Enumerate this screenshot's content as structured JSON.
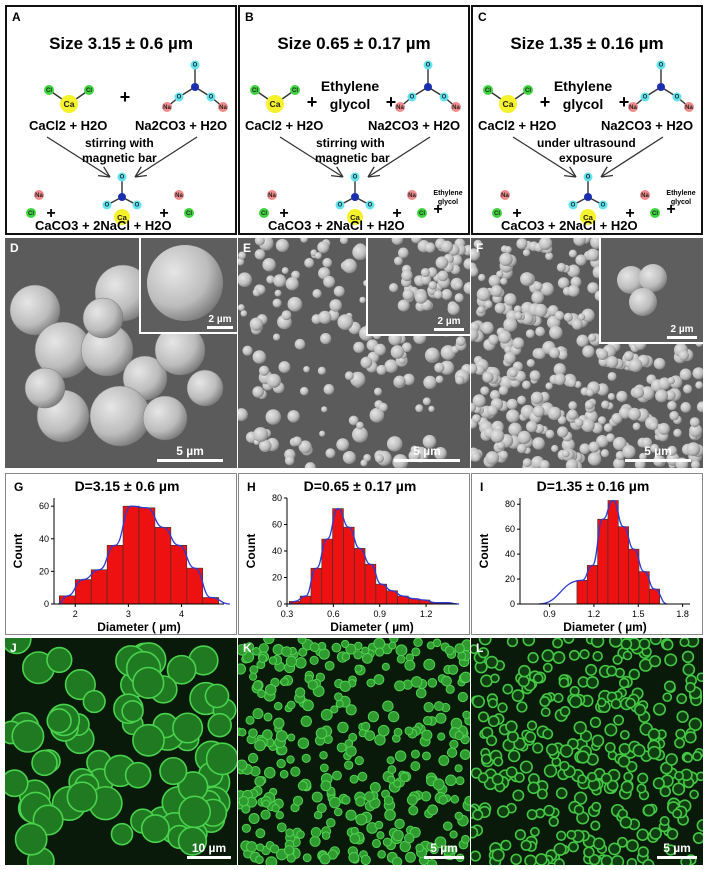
{
  "schemes": [
    {
      "label": "A",
      "title": "Size 3.15 ± 0.6 µm",
      "reactant1": "CaCl2 + H2O",
      "reactant2": "Na2CO3 + H2O",
      "condition1": "stirring with",
      "condition2": "magnetic bar",
      "product": "CaCO3 + 2NaCl + H2O",
      "extra": "",
      "extra_product": ""
    },
    {
      "label": "B",
      "title": "Size 0.65 ± 0.17 µm",
      "reactant1": "CaCl2 + H2O",
      "reactant2": "Na2CO3 + H2O",
      "condition1": "stirring with",
      "condition2": "magnetic bar",
      "product": "CaCO3 + 2NaCl + H2O",
      "extra": "Ethylene glycol",
      "extra_product": "Ethylene glycol"
    },
    {
      "label": "C",
      "title": "Size 1.35 ± 0.16 µm",
      "reactant1": "CaCl2 + H2O",
      "reactant2": "Na2CO3 + H2O",
      "condition1": "under ultrasound",
      "condition2": "exposure",
      "product": "CaCO3 + 2NaCl + H2O",
      "extra": "Ethylene glycol",
      "extra_product": "Ethylene glycol"
    }
  ],
  "atoms": {
    "ca": "Ca",
    "cl": "Cl",
    "na": "Na",
    "o": "O",
    "plus": "+"
  },
  "atom_colors": {
    "ca": "#f5f12a",
    "cl": "#3fd43f",
    "na": "#f28a8a",
    "o": "#5fe3ef",
    "c": "#1a2fb0",
    "bond": "#333333"
  },
  "sem_panels": [
    {
      "label": "D",
      "scale": "5 µm",
      "inset_scale": "2 µm"
    },
    {
      "label": "E",
      "scale": "5 µm",
      "inset_scale": "2 µm"
    },
    {
      "label": "F",
      "scale": "5 µm",
      "inset_scale": "2 µm"
    }
  ],
  "fluor_panels": [
    {
      "label": "J",
      "scale": "10 µm"
    },
    {
      "label": "K",
      "scale": "5 µm"
    },
    {
      "label": "L",
      "scale": "5 µm"
    }
  ],
  "chart_data": [
    {
      "type": "bar",
      "panel": "G",
      "title": "D=3.15 ± 0.6 µm",
      "xlabel": "Diameter ( µm)",
      "ylabel": "Count",
      "x": [
        1.85,
        2.15,
        2.45,
        2.75,
        3.05,
        3.35,
        3.65,
        3.95,
        4.25,
        4.55
      ],
      "values": [
        5,
        15,
        21,
        36,
        60,
        59,
        47,
        36,
        22,
        4
      ],
      "fit": "gaussian",
      "xlim": [
        1.6,
        4.8
      ],
      "ylim": [
        0,
        65
      ],
      "xticks": [
        2,
        3,
        4
      ],
      "yticks": [
        0,
        20,
        40,
        60
      ],
      "bar_color": "#ee1111",
      "fit_color": "#2a3bd6"
    },
    {
      "type": "bar",
      "panel": "H",
      "title": "D=0.65 ± 0.17 µm",
      "xlabel": "Diameter ( µm)",
      "ylabel": "Count",
      "x": [
        0.35,
        0.42,
        0.49,
        0.56,
        0.63,
        0.7,
        0.77,
        0.84,
        0.91,
        0.98,
        1.05,
        1.12,
        1.19,
        1.26,
        1.33
      ],
      "values": [
        2,
        6,
        27,
        49,
        72,
        58,
        42,
        30,
        15,
        10,
        6,
        4,
        3,
        1,
        1
      ],
      "fit": "lognormal",
      "xlim": [
        0.3,
        1.4
      ],
      "ylim": [
        0,
        80
      ],
      "xticks": [
        0.3,
        0.6,
        0.9,
        1.2
      ],
      "yticks": [
        0,
        20,
        40,
        60,
        80
      ],
      "bar_color": "#ee1111",
      "fit_color": "#2a3bd6"
    },
    {
      "type": "bar",
      "panel": "I",
      "title": "D=1.35 ± 0.16 µm",
      "xlabel": "Diameter ( µm)",
      "ylabel": "Count",
      "x": [
        1.12,
        1.19,
        1.26,
        1.33,
        1.4,
        1.47,
        1.54,
        1.61
      ],
      "values": [
        19,
        31,
        68,
        83,
        62,
        44,
        26,
        12
      ],
      "fit": "gaussian",
      "xlim": [
        0.7,
        1.85
      ],
      "ylim": [
        0,
        85
      ],
      "xticks": [
        0.9,
        1.2,
        1.5,
        1.8
      ],
      "yticks": [
        0,
        20,
        40,
        60,
        80
      ],
      "bar_color": "#ee1111",
      "fit_color": "#2a3bd6"
    }
  ]
}
